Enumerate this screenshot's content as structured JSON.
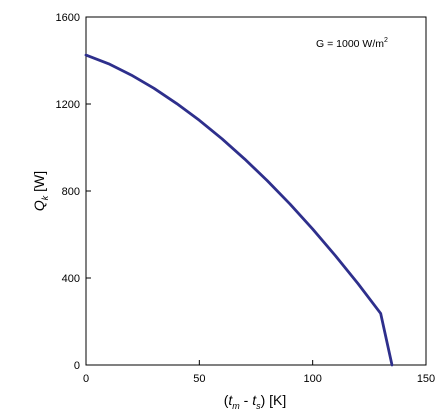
{
  "chart_data": {
    "type": "line",
    "title": "",
    "annotation": {
      "text": "G = 1000 W/m",
      "superscript": "2"
    },
    "xlabel": {
      "main": "t",
      "sub": "m",
      "sep": " - ",
      "main2": "t",
      "sub2": "s",
      "unit": " [K]"
    },
    "ylabel": {
      "main": "Q",
      "sub": "k",
      "unit": " [W]"
    },
    "xlim": [
      0,
      150
    ],
    "ylim": [
      0,
      1600
    ],
    "xticks": [
      0,
      50,
      100,
      150
    ],
    "yticks": [
      0,
      400,
      800,
      1200,
      1600
    ],
    "grid": false,
    "series": [
      {
        "color": "#2e2f8c",
        "x": [
          0,
          10,
          20,
          30,
          40,
          50,
          60,
          70,
          80,
          90,
          100,
          110,
          120,
          130,
          135
        ],
        "y": [
          1425,
          1385,
          1333,
          1272,
          1202,
          1125,
          1040,
          947,
          847,
          740,
          625,
          503,
          374,
          237,
          0
        ]
      }
    ]
  }
}
